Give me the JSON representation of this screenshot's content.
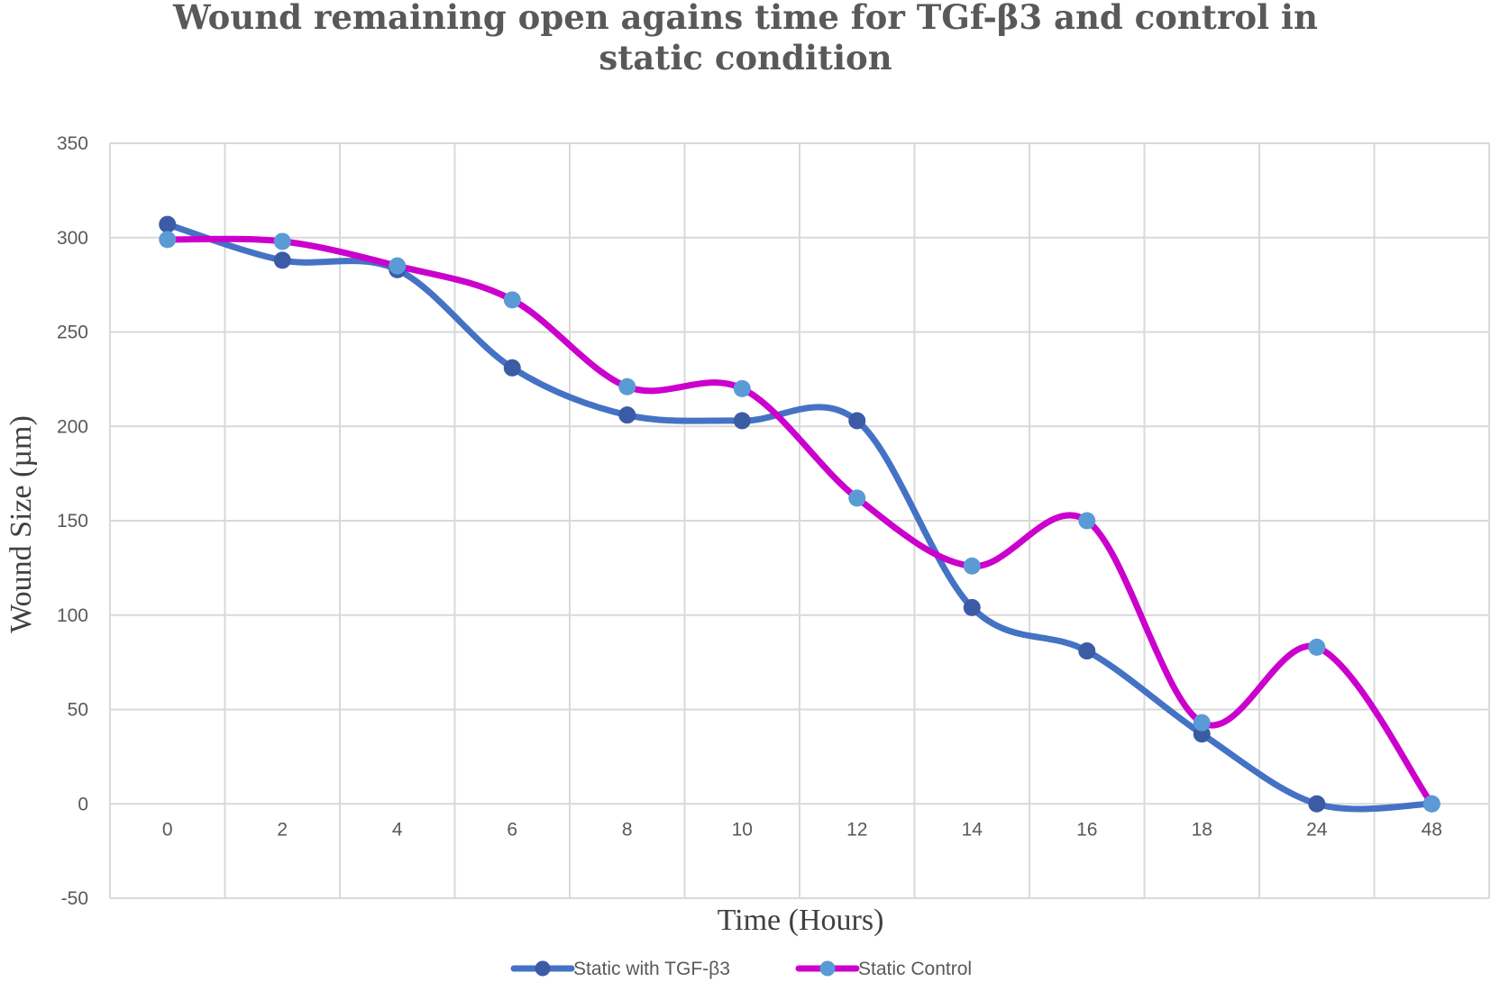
{
  "chart_data": {
    "type": "line",
    "title_lines": [
      "Wound remaining open agains time for TGf-β3 and control in",
      "static condition"
    ],
    "xlabel": "Time (Hours)",
    "ylabel": "Wound Size (µm)",
    "categories": [
      "0",
      "2",
      "4",
      "6",
      "8",
      "10",
      "12",
      "14",
      "16",
      "18",
      "24",
      "48"
    ],
    "ylim": [
      -50,
      350
    ],
    "yticks": [
      -50,
      0,
      50,
      100,
      150,
      200,
      250,
      300,
      350
    ],
    "grid": true,
    "smooth": true,
    "legend_position": "bottom",
    "series": [
      {
        "name": "Static with TGF-β3",
        "color": "#4472c4",
        "marker_color": "#3c5ba5",
        "values": [
          307,
          288,
          283,
          231,
          206,
          203,
          203,
          104,
          81,
          37,
          0,
          0
        ]
      },
      {
        "name": "Static Control",
        "color": "#cc00cc",
        "marker_color": "#5b9bd5",
        "values": [
          299,
          298,
          285,
          267,
          221,
          220,
          162,
          126,
          150,
          43,
          83,
          0
        ]
      }
    ]
  }
}
